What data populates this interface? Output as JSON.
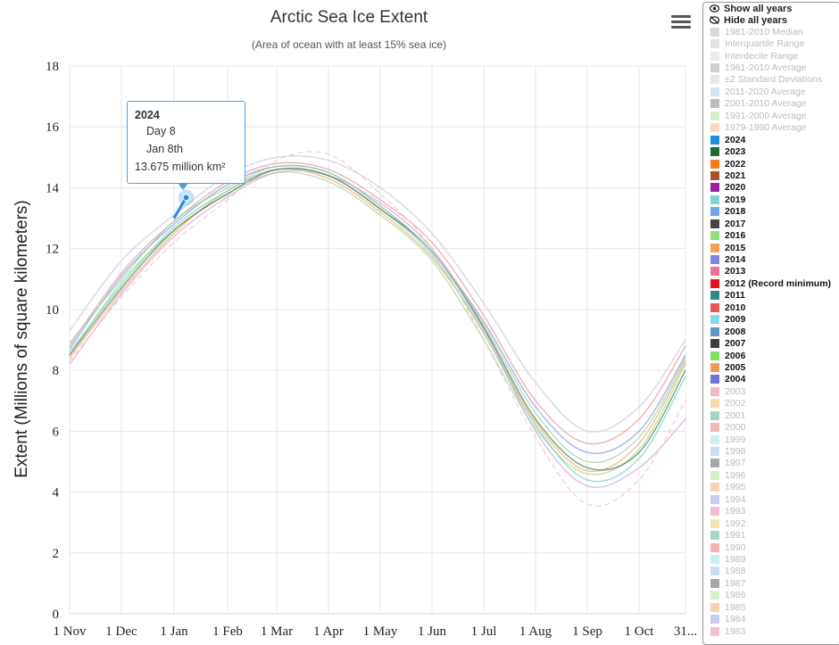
{
  "chart_data": {
    "type": "line",
    "title": "Arctic Sea Ice Extent",
    "subtitle": "(Area of ocean with at least 15% sea ice)",
    "ylabel": "Extent (Millions of square kilometers)",
    "xlabel": "",
    "ylim": [
      0,
      18
    ],
    "y_ticks": [
      "0",
      "2",
      "4",
      "6",
      "8",
      "10",
      "12",
      "14",
      "16",
      "18"
    ],
    "x_ticks": [
      "1 Nov",
      "1 Dec",
      "1 Jan",
      "1 Feb",
      "1 Mar",
      "1 Apr",
      "1 May",
      "1 Jun",
      "1 Jul",
      "1 Aug",
      "1 Sep",
      "1 Oct",
      "31..."
    ],
    "grid": true,
    "series": [
      {
        "name": "2024",
        "color": "#1f8ee0",
        "x": [
          "1 Jan",
          "Jan 8th"
        ],
        "values": [
          13.0,
          13.675
        ]
      }
    ],
    "background_years": {
      "x": [
        "1 Nov",
        "1 Dec",
        "1 Jan",
        "1 Feb",
        "1 Mar",
        "1 Apr",
        "1 May",
        "1 Jun",
        "1 Jul",
        "1 Aug",
        "1 Sep",
        "1 Oct",
        "31..."
      ],
      "lines": [
        {
          "color": "#a6d99b",
          "values": [
            8.5,
            10.9,
            12.6,
            13.8,
            14.5,
            14.2,
            13.1,
            11.6,
            9.0,
            6.1,
            4.6,
            5.4,
            8.2
          ]
        },
        {
          "color": "#f2a772",
          "values": [
            8.4,
            10.6,
            12.5,
            13.9,
            14.6,
            14.3,
            13.2,
            11.7,
            9.3,
            6.3,
            4.7,
            5.6,
            8.3
          ]
        },
        {
          "color": "#8b9be6",
          "values": [
            8.7,
            11.1,
            12.8,
            14.1,
            14.7,
            14.5,
            13.4,
            11.9,
            9.6,
            6.8,
            5.3,
            6.0,
            8.5
          ]
        },
        {
          "color": "#d0a6e6",
          "values": [
            8.2,
            10.5,
            12.4,
            13.7,
            14.5,
            14.4,
            13.5,
            12.0,
            9.4,
            6.0,
            4.2,
            4.8,
            6.4
          ]
        },
        {
          "color": "#7ecfc4",
          "values": [
            8.6,
            10.8,
            12.7,
            13.9,
            14.6,
            14.4,
            13.3,
            11.8,
            9.2,
            6.2,
            4.4,
            5.1,
            7.8
          ]
        },
        {
          "color": "#e89a9a",
          "values": [
            8.8,
            11.2,
            12.9,
            14.2,
            14.8,
            14.6,
            13.6,
            12.2,
            9.8,
            7.0,
            5.6,
            6.4,
            8.8
          ]
        },
        {
          "color": "#4f7f4f",
          "values": [
            8.5,
            10.7,
            12.6,
            13.8,
            14.6,
            14.4,
            13.3,
            11.9,
            9.4,
            6.4,
            4.8,
            5.3,
            8.0
          ]
        },
        {
          "color": "#c9c9e8",
          "values": [
            9.3,
            11.6,
            13.1,
            14.4,
            15.0,
            14.9,
            14.0,
            12.5,
            10.2,
            7.6,
            6.0,
            6.8,
            9.0
          ]
        },
        {
          "color": "#f6c2c2",
          "values": [
            8.3,
            10.4,
            12.2,
            13.6,
            14.9,
            15.1,
            13.8,
            12.0,
            9.0,
            5.8,
            3.6,
            4.4,
            7.0
          ]
        },
        {
          "color": "#9ccfa6",
          "values": [
            8.9,
            11.0,
            12.9,
            14.0,
            14.7,
            14.5,
            13.4,
            11.9,
            9.5,
            6.6,
            5.0,
            5.8,
            8.4
          ]
        }
      ]
    }
  },
  "tooltip": {
    "year": "2024",
    "day": "Day 8",
    "date": "Jan 8th",
    "value": "13.675 million km²",
    "border_color": "#4aa3df"
  },
  "menu": {
    "icon": "hamburger-menu-icon"
  },
  "legend": {
    "actions": [
      {
        "label": "Show all years",
        "icon": "eye-icon"
      },
      {
        "label": "Hide all years",
        "icon": "eye-slash-icon"
      }
    ],
    "items": [
      {
        "label": "1981-2010 Median",
        "color": "#d9d9d9",
        "on": false
      },
      {
        "label": "Interquartile Range",
        "color": "#e3e3e3",
        "on": false
      },
      {
        "label": "Interdecile Range",
        "color": "#ebebeb",
        "on": false
      },
      {
        "label": "1981-2010 Average",
        "color": "#cfcfcf",
        "on": false
      },
      {
        "label": "±2 Standard Deviations",
        "color": "#e6e6e6",
        "on": false
      },
      {
        "label": "2011-2020 Average",
        "color": "#d7e4f5",
        "on": false
      },
      {
        "label": "2001-2010 Average",
        "color": "#bdbdbd",
        "on": false
      },
      {
        "label": "1991-2000 Average",
        "color": "#d4f0cf",
        "on": false
      },
      {
        "label": "1979-1990 Average",
        "color": "#f7d9c0",
        "on": false
      },
      {
        "label": "2024",
        "color": "#1f8ee0",
        "on": true
      },
      {
        "label": "2023",
        "color": "#1e6b30",
        "on": true
      },
      {
        "label": "2022",
        "color": "#f57c1f",
        "on": true
      },
      {
        "label": "2021",
        "color": "#a0522d",
        "on": true
      },
      {
        "label": "2020",
        "color": "#9b1fa3",
        "on": true
      },
      {
        "label": "2019",
        "color": "#7fd6cf",
        "on": true
      },
      {
        "label": "2018",
        "color": "#6fa8e8",
        "on": true
      },
      {
        "label": "2017",
        "color": "#444444",
        "on": true
      },
      {
        "label": "2016",
        "color": "#8ee07a",
        "on": true
      },
      {
        "label": "2015",
        "color": "#f5a05a",
        "on": true
      },
      {
        "label": "2014",
        "color": "#7f86e0",
        "on": true
      },
      {
        "label": "2013",
        "color": "#f07095",
        "on": true
      },
      {
        "label": "2012 (Record minimum)",
        "color": "#e8101a",
        "on": true
      },
      {
        "label": "2011",
        "color": "#2e8b85",
        "on": true
      },
      {
        "label": "2010",
        "color": "#e8585a",
        "on": true
      },
      {
        "label": "2009",
        "color": "#7fdbe6",
        "on": true
      },
      {
        "label": "2008",
        "color": "#5f95c9",
        "on": true
      },
      {
        "label": "2007",
        "color": "#3d3d3d",
        "on": true
      },
      {
        "label": "2006",
        "color": "#80e06a",
        "on": true
      },
      {
        "label": "2005",
        "color": "#f29a5a",
        "on": true
      },
      {
        "label": "2004",
        "color": "#6f74d9",
        "on": true
      },
      {
        "label": "2003",
        "color": "#f3b8c8",
        "on": false
      },
      {
        "label": "2002",
        "color": "#f7dba8",
        "on": false
      },
      {
        "label": "2001",
        "color": "#a8d4c8",
        "on": false
      },
      {
        "label": "2000",
        "color": "#f5b8b8",
        "on": false
      },
      {
        "label": "1999",
        "color": "#cfeeee",
        "on": false
      },
      {
        "label": "1998",
        "color": "#c8dcf5",
        "on": false
      },
      {
        "label": "1997",
        "color": "#a8a8a8",
        "on": false
      },
      {
        "label": "1996",
        "color": "#d4f2c4",
        "on": false
      },
      {
        "label": "1995",
        "color": "#f8d2b4",
        "on": false
      },
      {
        "label": "1994",
        "color": "#c8ccf2",
        "on": false
      },
      {
        "label": "1993",
        "color": "#f5bcd2",
        "on": false
      },
      {
        "label": "1992",
        "color": "#f5e4b0",
        "on": false
      },
      {
        "label": "1991",
        "color": "#a8d6c8",
        "on": false
      },
      {
        "label": "1990",
        "color": "#f5b4b4",
        "on": false
      },
      {
        "label": "1989",
        "color": "#c8f0ee",
        "on": false
      },
      {
        "label": "1988",
        "color": "#c8dcf8",
        "on": false
      },
      {
        "label": "1987",
        "color": "#a8a8a8",
        "on": false
      },
      {
        "label": "1986",
        "color": "#d4f4c8",
        "on": false
      },
      {
        "label": "1985",
        "color": "#f8d4b0",
        "on": false
      },
      {
        "label": "1984",
        "color": "#c8ccf4",
        "on": false
      },
      {
        "label": "1983",
        "color": "#f5c0d4",
        "on": false
      }
    ]
  }
}
